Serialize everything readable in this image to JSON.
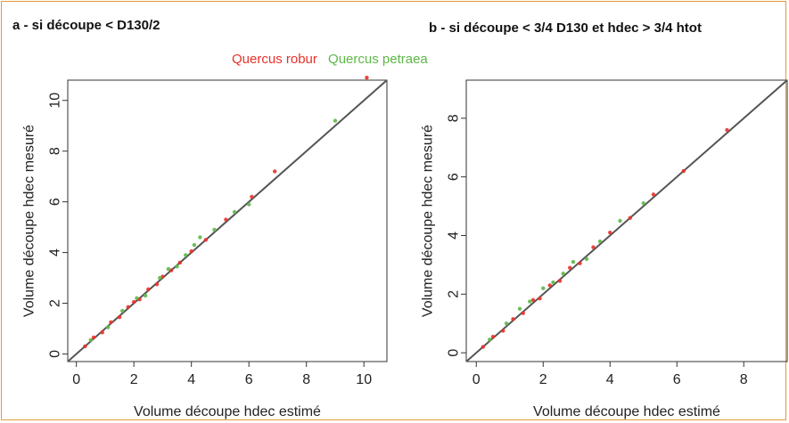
{
  "legend": {
    "robur_label": "Quercus robur",
    "petraea_label": "Quercus petraea",
    "robur_color": "#e8312a",
    "petraea_color": "#5cb847"
  },
  "chart_data": [
    {
      "type": "scatter",
      "title": "a - si découpe < D130/2",
      "xlabel": "Volume découpe hdec estimé",
      "ylabel": "Volume découpe hdec mesuré",
      "xlim": [
        -0.3,
        10.8
      ],
      "ylim": [
        -0.3,
        10.8
      ],
      "xticks": [
        0,
        2,
        4,
        6,
        8,
        10
      ],
      "yticks": [
        0,
        2,
        4,
        6,
        8,
        10
      ],
      "reference_line": "y = x",
      "series": [
        {
          "name": "Quercus robur",
          "color": "#e8312a",
          "points": [
            [
              0.3,
              0.3
            ],
            [
              0.6,
              0.65
            ],
            [
              0.9,
              0.85
            ],
            [
              1.2,
              1.25
            ],
            [
              1.5,
              1.45
            ],
            [
              1.8,
              1.85
            ],
            [
              2.0,
              2.05
            ],
            [
              2.2,
              2.15
            ],
            [
              2.5,
              2.55
            ],
            [
              2.8,
              2.75
            ],
            [
              3.0,
              3.05
            ],
            [
              3.3,
              3.3
            ],
            [
              3.6,
              3.6
            ],
            [
              4.0,
              4.05
            ],
            [
              4.5,
              4.5
            ],
            [
              5.2,
              5.3
            ],
            [
              6.1,
              6.2
            ],
            [
              6.9,
              7.2
            ],
            [
              10.1,
              10.9
            ]
          ]
        },
        {
          "name": "Quercus petraea",
          "color": "#5cb847",
          "points": [
            [
              0.5,
              0.55
            ],
            [
              1.1,
              1.05
            ],
            [
              1.6,
              1.7
            ],
            [
              2.1,
              2.2
            ],
            [
              2.4,
              2.3
            ],
            [
              2.9,
              3.0
            ],
            [
              3.2,
              3.35
            ],
            [
              3.5,
              3.45
            ],
            [
              3.8,
              3.9
            ],
            [
              4.1,
              4.3
            ],
            [
              4.3,
              4.6
            ],
            [
              4.8,
              4.9
            ],
            [
              5.5,
              5.6
            ],
            [
              6.0,
              5.9
            ],
            [
              9.0,
              9.2
            ]
          ]
        }
      ]
    },
    {
      "type": "scatter",
      "title": "b - si découpe < 3/4 D130 et hdec > 3/4 htot",
      "xlabel": "Volume découpe hdec estimé",
      "ylabel": "Volume découpe hdec mesuré",
      "xlim": [
        -0.3,
        9.3
      ],
      "ylim": [
        -0.3,
        9.3
      ],
      "xticks": [
        0,
        2,
        4,
        6,
        8
      ],
      "yticks": [
        0,
        2,
        4,
        6,
        8
      ],
      "reference_line": "y = x",
      "series": [
        {
          "name": "Quercus robur",
          "color": "#e8312a",
          "points": [
            [
              0.2,
              0.2
            ],
            [
              0.5,
              0.55
            ],
            [
              0.8,
              0.75
            ],
            [
              1.1,
              1.15
            ],
            [
              1.4,
              1.35
            ],
            [
              1.7,
              1.8
            ],
            [
              1.9,
              1.85
            ],
            [
              2.2,
              2.3
            ],
            [
              2.5,
              2.45
            ],
            [
              2.8,
              2.9
            ],
            [
              3.1,
              3.05
            ],
            [
              3.5,
              3.6
            ],
            [
              4.0,
              4.1
            ],
            [
              4.6,
              4.6
            ],
            [
              5.3,
              5.4
            ],
            [
              6.2,
              6.2
            ],
            [
              7.5,
              7.6
            ]
          ]
        },
        {
          "name": "Quercus petraea",
          "color": "#5cb847",
          "points": [
            [
              0.4,
              0.45
            ],
            [
              0.9,
              1.0
            ],
            [
              1.3,
              1.5
            ],
            [
              1.6,
              1.75
            ],
            [
              2.0,
              2.2
            ],
            [
              2.3,
              2.4
            ],
            [
              2.6,
              2.7
            ],
            [
              2.9,
              3.1
            ],
            [
              3.3,
              3.2
            ],
            [
              3.7,
              3.8
            ],
            [
              4.3,
              4.5
            ],
            [
              5.0,
              5.1
            ]
          ]
        }
      ]
    }
  ]
}
